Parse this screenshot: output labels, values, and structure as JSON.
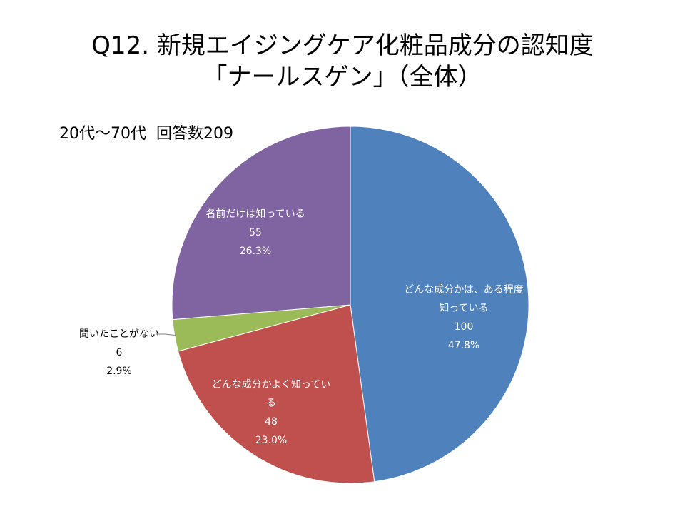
{
  "title_line1": "Q12. 新規エイジングケア化粧品成分の認知度",
  "title_line2": "「ナールスゲン」（全体）",
  "subtitle": "20代～70代  回答数209",
  "chart_data": {
    "type": "pie",
    "title": "Q12. 新規エイジングケア化粧品成分の認知度 「ナールスゲン」（全体）",
    "subtitle": "20代～70代  回答数209",
    "slices": [
      {
        "label_lines": [
          "どんな成分かは、ある程度",
          "知っている"
        ],
        "value": 100,
        "percent": "47.8%",
        "color": "#4F81BD",
        "label_color": "#ffffff"
      },
      {
        "label_lines": [
          "どんな成分かよく知ってい",
          "る"
        ],
        "value": 48,
        "percent": "23.0%",
        "color": "#C0504D",
        "label_color": "#ffffff"
      },
      {
        "label_lines": [
          "聞いたことがない"
        ],
        "value": 6,
        "percent": "2.9%",
        "color": "#9BBB59",
        "label_color": "#000000"
      },
      {
        "label_lines": [
          "名前だけは知っている"
        ],
        "value": 55,
        "percent": "26.3%",
        "color": "#8064A2",
        "label_color": "#ffffff"
      }
    ]
  }
}
